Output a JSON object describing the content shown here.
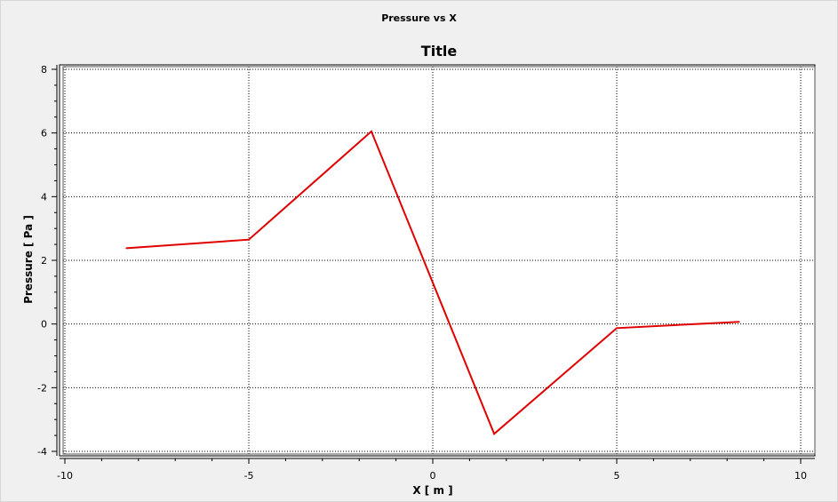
{
  "window": {
    "title": "Pressure vs X"
  },
  "chart_data": {
    "type": "line",
    "title": "Title",
    "xlabel": "X [ m ]",
    "ylabel": "Pressure [ Pa ]",
    "xlim": [
      -10,
      10
    ],
    "ylim": [
      -4,
      8
    ],
    "x_ticks": [
      -10,
      -5,
      0,
      5,
      10
    ],
    "y_ticks": [
      -4,
      -2,
      0,
      2,
      4,
      6,
      8
    ],
    "grid": true,
    "series": [
      {
        "color": "#e00000",
        "x": [
          -8.33,
          -5.0,
          -1.67,
          1.67,
          5.0,
          8.33
        ],
        "y": [
          2.38,
          2.65,
          6.05,
          -3.45,
          -0.13,
          0.07
        ]
      }
    ]
  }
}
